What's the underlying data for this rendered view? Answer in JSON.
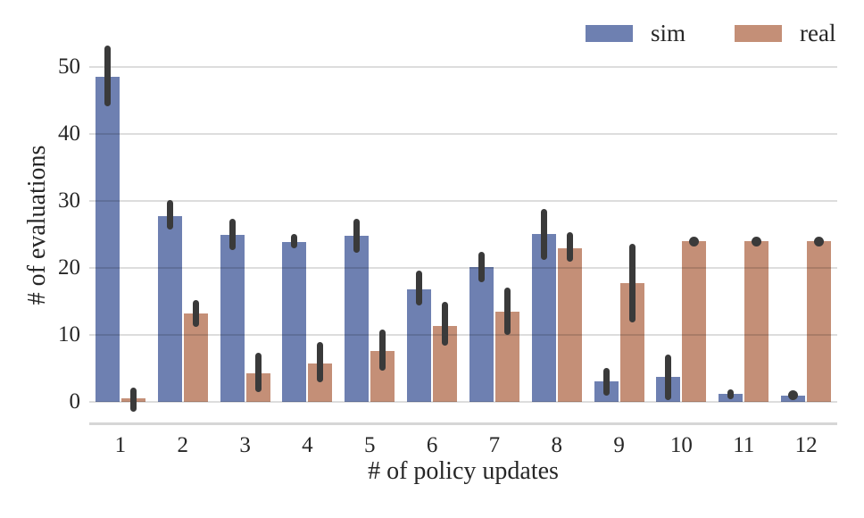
{
  "chart_data": {
    "type": "bar",
    "title": "",
    "xlabel": "# of policy updates",
    "ylabel": "# of evaluations",
    "categories": [
      "1",
      "2",
      "3",
      "4",
      "5",
      "6",
      "7",
      "8",
      "9",
      "10",
      "11",
      "12"
    ],
    "yticks": [
      0,
      10,
      20,
      30,
      40,
      50
    ],
    "ylim": [
      0,
      55.6
    ],
    "grid": true,
    "legend_position": "upper-right",
    "series": [
      {
        "name": "sim",
        "color": "#6E80B1",
        "values": [
          48.6,
          27.7,
          25.0,
          23.9,
          24.8,
          16.8,
          20.1,
          25.1,
          3.1,
          3.8,
          1.2,
          1.0
        ],
        "ci_low": [
          44.1,
          25.7,
          22.7,
          23.0,
          22.3,
          14.4,
          17.9,
          21.2,
          1.0,
          0.3,
          0.4,
          1.0
        ],
        "ci_high": [
          53.2,
          30.2,
          27.4,
          25.1,
          27.4,
          19.6,
          22.4,
          28.8,
          5.1,
          7.1,
          1.9,
          1.0
        ]
      },
      {
        "name": "real",
        "color": "#C48F77",
        "values": [
          0.5,
          13.2,
          4.3,
          5.8,
          7.6,
          11.4,
          13.5,
          22.9,
          17.7,
          24.0,
          24.0,
          24.0
        ],
        "ci_low": [
          -1.5,
          11.2,
          1.5,
          3.0,
          4.7,
          8.4,
          10.0,
          21.0,
          11.9,
          24.0,
          24.0,
          24.0
        ],
        "ci_high": [
          2.2,
          15.2,
          7.4,
          8.9,
          10.8,
          14.9,
          17.1,
          25.3,
          23.6,
          24.0,
          24.0,
          24.0
        ]
      }
    ],
    "error_bar_color": "#3A3A3A",
    "text_color": "#262626",
    "grid_color": "#DDDDDD",
    "background_color": "#FFFFFF"
  }
}
